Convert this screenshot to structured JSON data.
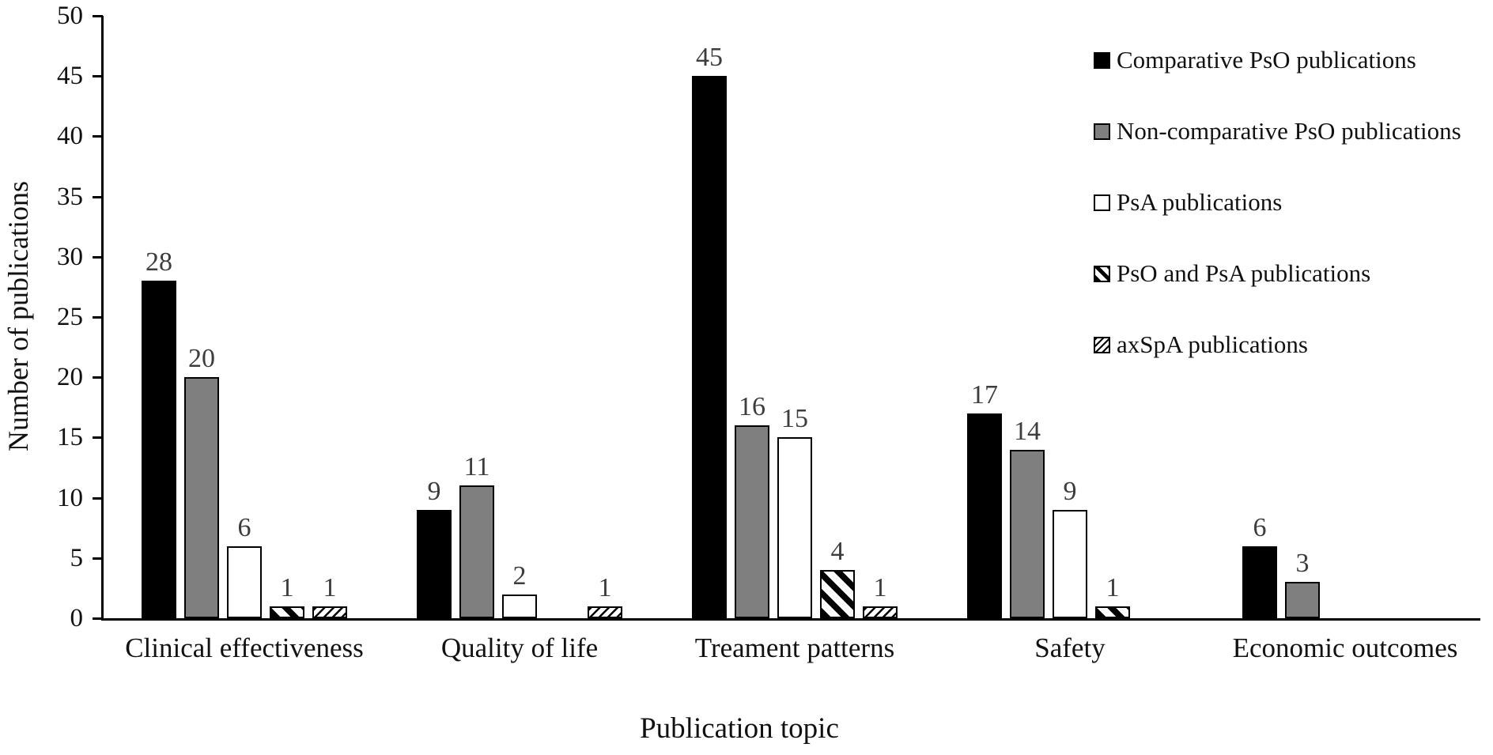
{
  "chart_data": {
    "type": "bar",
    "title": "",
    "xlabel": "Publication topic",
    "ylabel": "Number of publications",
    "categories": [
      "Clinical effectiveness",
      "Quality of life",
      "Treament patterns",
      "Safety",
      "Economic outcomes"
    ],
    "series": [
      {
        "name": "Comparative PsO publications",
        "pattern": "solid-black",
        "color": "#000000",
        "values": [
          28,
          9,
          45,
          17,
          6
        ]
      },
      {
        "name": "Non-comparative PsO publications",
        "pattern": "solid-gray",
        "color": "#7f7f7f",
        "values": [
          20,
          11,
          16,
          14,
          3
        ]
      },
      {
        "name": "PsA publications",
        "pattern": "white-outline",
        "color": "#ffffff",
        "values": [
          6,
          2,
          15,
          9,
          0
        ]
      },
      {
        "name": "PsO and PsA publications",
        "pattern": "diagonal-hatch-backslash",
        "color": "#000000",
        "values": [
          1,
          0,
          4,
          1,
          0
        ]
      },
      {
        "name": "axSpA publications",
        "pattern": "diagonal-hatch-forwardslash",
        "color": "#000000",
        "values": [
          1,
          1,
          1,
          0,
          0
        ]
      }
    ],
    "ylim": [
      0,
      50
    ],
    "yticks": [
      0,
      5,
      10,
      15,
      20,
      25,
      30,
      35,
      40,
      45,
      50
    ],
    "grid": "off",
    "legend_position": "top-right",
    "value_labels": "shown above each bar; zero values have no bar and no label"
  }
}
